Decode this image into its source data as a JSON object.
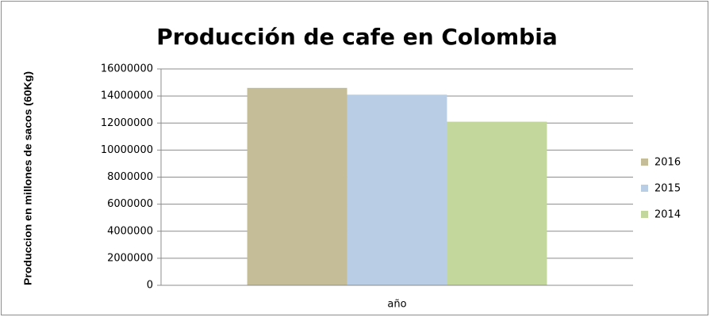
{
  "chart_data": {
    "type": "bar",
    "title": "Producción de cafe en Colombia",
    "y_label": "Produccion en millones de sacos (60Kg)",
    "categories": [
      "año"
    ],
    "series": [
      {
        "name": "2016",
        "color": "#c4bd97",
        "values": [
          14600000
        ]
      },
      {
        "name": "2015",
        "color": "#b9cde5",
        "values": [
          14100000
        ]
      },
      {
        "name": "2014",
        "color": "#c3d69b",
        "values": [
          12100000
        ]
      }
    ],
    "ylim": [
      0,
      16000000
    ],
    "yticks": [
      0,
      2000000,
      4000000,
      6000000,
      8000000,
      10000000,
      12000000,
      14000000,
      16000000
    ],
    "grid": true,
    "legend": "right"
  }
}
